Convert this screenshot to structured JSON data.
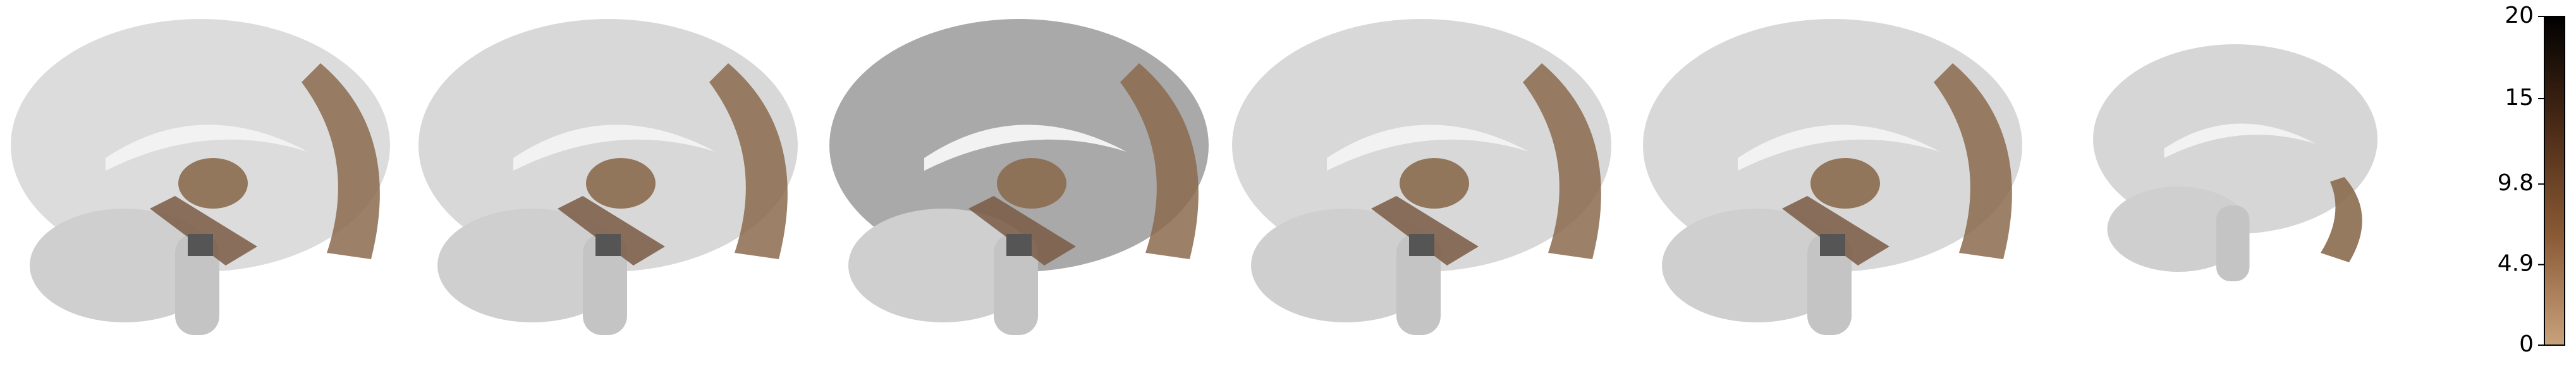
{
  "colorbar": {
    "lim": [
      0,
      20
    ],
    "ticks": [
      0,
      4.9,
      9.8,
      15,
      20
    ],
    "colors": [
      "#c8a27c",
      "#8a5a35",
      "#4a2a16",
      "#000000"
    ]
  }
}
